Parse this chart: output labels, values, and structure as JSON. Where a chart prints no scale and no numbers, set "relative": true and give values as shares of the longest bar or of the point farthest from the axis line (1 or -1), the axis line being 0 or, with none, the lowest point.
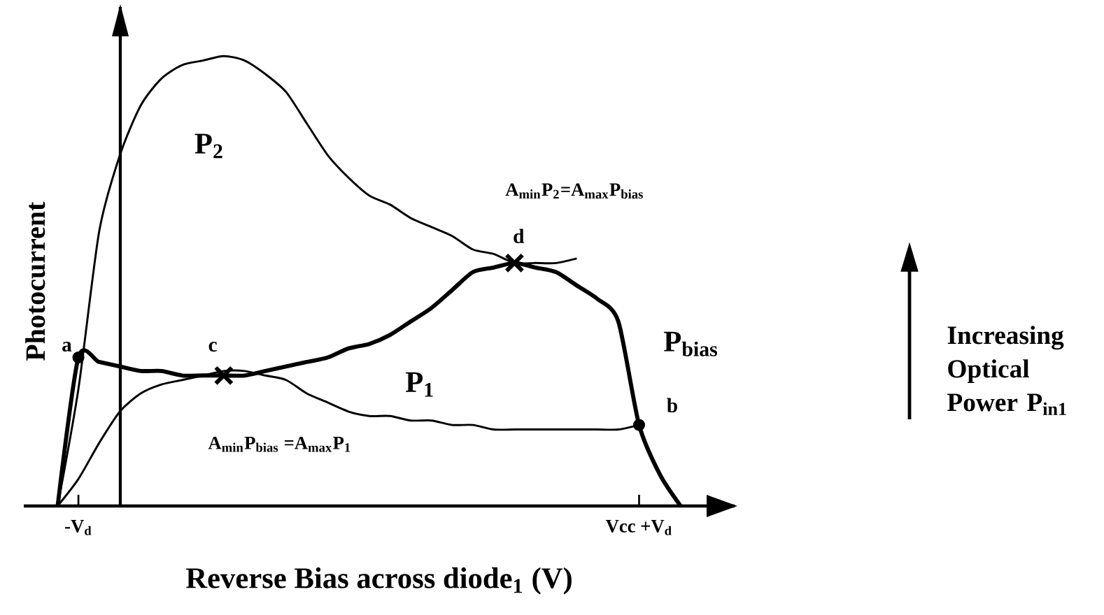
{
  "chart_data": {
    "type": "line",
    "relative": true,
    "xlabel": "Reverse Bias across diode$_{1}$ (V)",
    "ylabel": "Photocurrent",
    "categories": [
      null,
      "-V$_{d}$",
      null,
      null,
      null,
      null,
      null,
      null,
      null,
      null,
      null,
      null,
      null,
      null,
      null,
      null,
      null,
      null,
      null,
      null,
      null,
      null,
      null,
      null,
      null,
      null,
      null,
      null,
      "Vcc +V$_{d}$",
      null,
      null
    ],
    "series": [
      {
        "name": "P$_{2}$",
        "color": "#000000",
        "values": [
          0,
          0.26,
          0.61,
          0.78,
          0.89,
          0.95,
          0.98,
          0.99,
          1.0,
          0.99,
          0.96,
          0.92,
          0.85,
          0.78,
          0.73,
          0.69,
          0.67,
          0.64,
          0.62,
          0.6,
          0.57,
          0.56,
          0.54,
          0.54,
          0.54,
          0.55,
          null,
          null,
          null,
          null,
          null
        ]
      },
      {
        "name": "P$_{1}$",
        "color": "#000000",
        "values": [
          0,
          0.06,
          0.14,
          0.21,
          0.25,
          0.27,
          0.28,
          0.29,
          0.3,
          0.3,
          0.29,
          0.28,
          0.25,
          0.23,
          0.21,
          0.2,
          0.2,
          0.19,
          0.19,
          0.18,
          0.18,
          0.17,
          0.17,
          0.17,
          0.17,
          0.17,
          0.17,
          0.17,
          0.18,
          null,
          null
        ]
      },
      {
        "name": "P$_{bias}$",
        "color": "#000000",
        "values": [
          0,
          0.33,
          0.32,
          0.31,
          0.3,
          0.3,
          0.29,
          0.29,
          0.29,
          0.29,
          0.3,
          0.31,
          0.32,
          0.33,
          0.35,
          0.36,
          0.38,
          0.41,
          0.44,
          0.48,
          0.52,
          0.53,
          0.54,
          0.53,
          0.52,
          0.49,
          0.46,
          0.41,
          0.18,
          0.07,
          0
        ]
      },
      {
        "type": "scatter",
        "marker": "circle",
        "color": "#000000",
        "values": [
          null,
          0.33,
          null,
          null,
          null,
          null,
          null,
          null,
          null,
          null,
          null,
          null,
          null,
          null,
          null,
          null,
          null,
          null,
          null,
          null,
          null,
          null,
          null,
          null,
          null,
          null,
          null,
          null,
          0.18,
          null,
          null
        ]
      },
      {
        "type": "scatter",
        "marker": "cross",
        "color": "#000000",
        "values": [
          null,
          null,
          null,
          null,
          null,
          null,
          null,
          null,
          0.29,
          null,
          null,
          null,
          null,
          null,
          null,
          null,
          null,
          null,
          null,
          null,
          null,
          null,
          0.54,
          null,
          null,
          null,
          null,
          null,
          null,
          null,
          null
        ]
      }
    ],
    "annotations": [
      "a",
      "b",
      "c",
      "d",
      "A$_{min}$P$_{2}$=A$_{max}$P$_{bias}$",
      "A$_{min}$P$_{bias}$ =A$_{max}$P$_{1}$",
      "Increasing Optical Power P$_{in1}$"
    ]
  }
}
